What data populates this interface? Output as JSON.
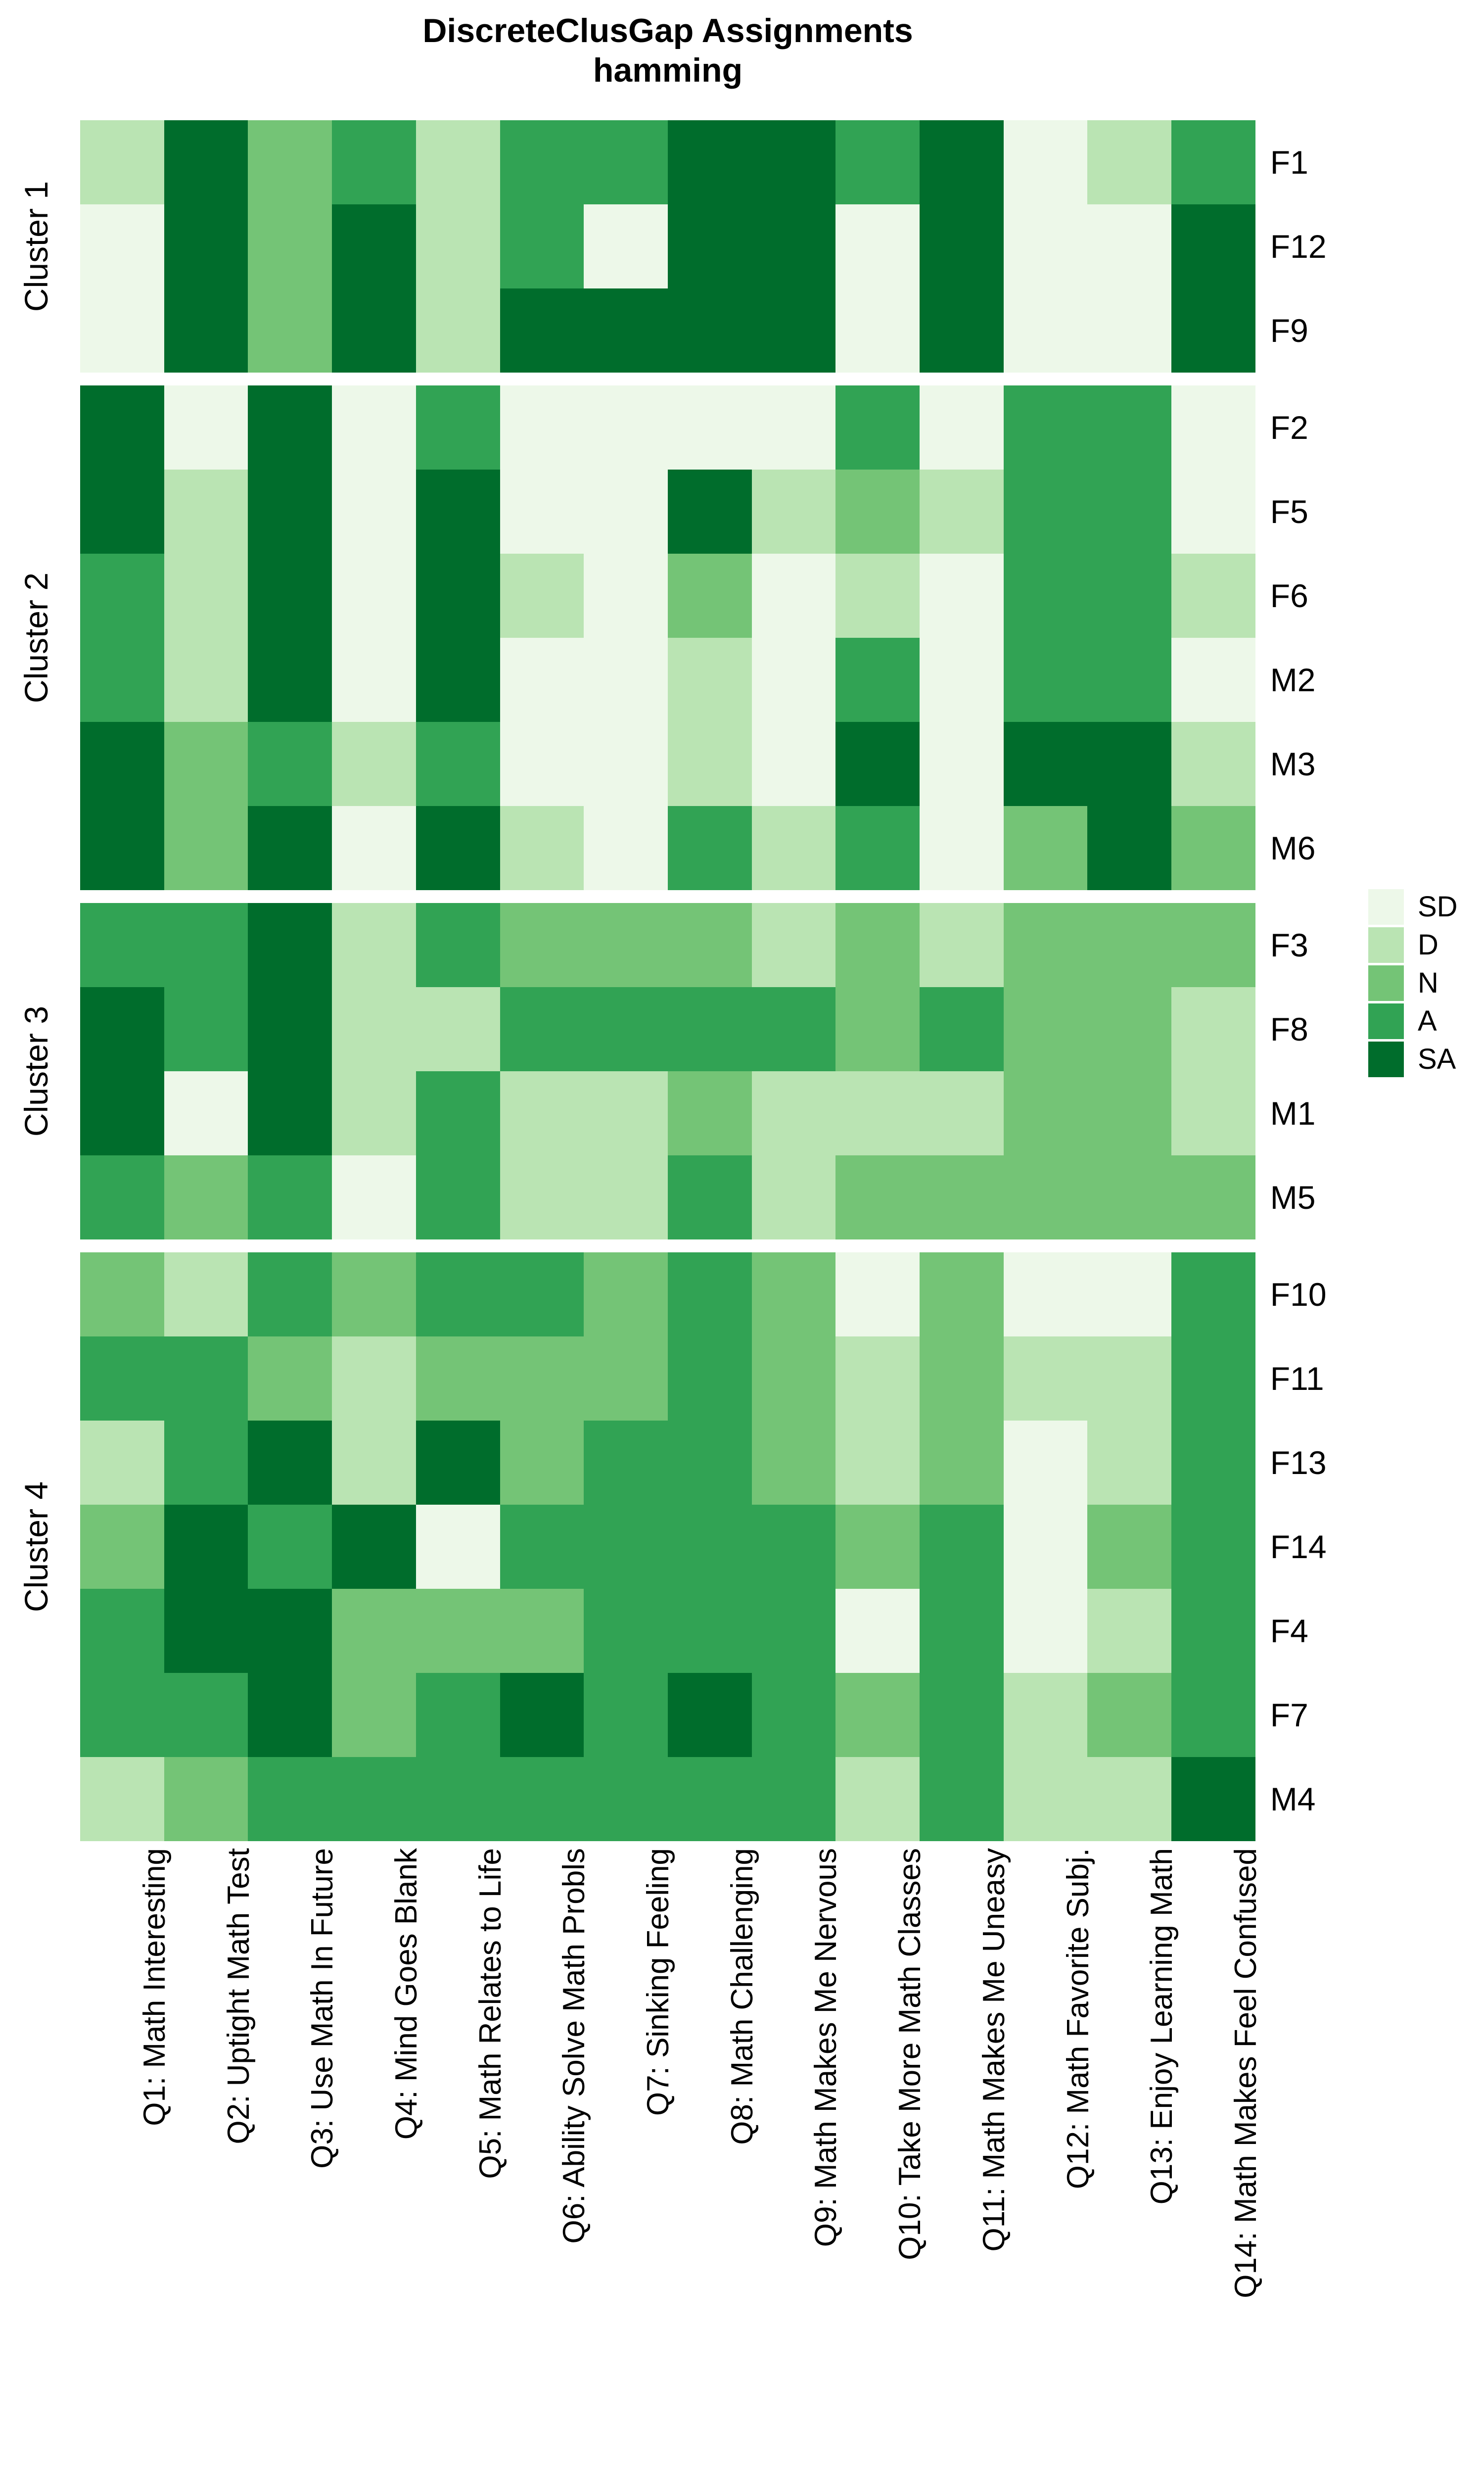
{
  "chart_data": {
    "type": "heatmap",
    "title": "DiscreteClusGap Assignments",
    "subtitle": "hamming",
    "legend": {
      "position": "right",
      "entries": [
        {
          "label": "SD",
          "color": "#edf8e9"
        },
        {
          "label": "D",
          "color": "#bae4b3"
        },
        {
          "label": "N",
          "color": "#74c476"
        },
        {
          "label": "A",
          "color": "#31a354"
        },
        {
          "label": "SA",
          "color": "#006d2c"
        }
      ]
    },
    "columns": [
      "Q1: Math Interesting",
      "Q2: Uptight Math Test",
      "Q3: Use Math In Future",
      "Q4: Mind Goes Blank",
      "Q5: Math Relates to Life",
      "Q6: Ability Solve Math Probls",
      "Q7: Sinking Feeling",
      "Q8: Math Challenging",
      "Q9: Math Makes Me Nervous",
      "Q10: Take More Math Classes",
      "Q11: Math Makes Me Uneasy",
      "Q12: Math Favorite Subj.",
      "Q13: Enjoy Learning Math",
      "Q14: Math Makes Feel Confused"
    ],
    "clusters": [
      {
        "name": "Cluster 1",
        "rows": [
          {
            "label": "F1",
            "values": [
              "D",
              "SA",
              "N",
              "A",
              "D",
              "A",
              "A",
              "SA",
              "SA",
              "A",
              "SA",
              "SD",
              "D",
              "A"
            ]
          },
          {
            "label": "F12",
            "values": [
              "SD",
              "SA",
              "N",
              "SA",
              "D",
              "A",
              "SD",
              "SA",
              "SA",
              "SD",
              "SA",
              "SD",
              "SD",
              "SA"
            ]
          },
          {
            "label": "F9",
            "values": [
              "SD",
              "SA",
              "N",
              "SA",
              "D",
              "SA",
              "SA",
              "SA",
              "SA",
              "SD",
              "SA",
              "SD",
              "SD",
              "SA"
            ]
          }
        ]
      },
      {
        "name": "Cluster 2",
        "rows": [
          {
            "label": "F2",
            "values": [
              "SA",
              "SD",
              "SA",
              "SD",
              "A",
              "SD",
              "SD",
              "SD",
              "SD",
              "A",
              "SD",
              "A",
              "A",
              "SD"
            ]
          },
          {
            "label": "F5",
            "values": [
              "SA",
              "D",
              "SA",
              "SD",
              "SA",
              "SD",
              "SD",
              "SA",
              "D",
              "N",
              "D",
              "A",
              "A",
              "SD"
            ]
          },
          {
            "label": "F6",
            "values": [
              "A",
              "D",
              "SA",
              "SD",
              "SA",
              "D",
              "SD",
              "N",
              "SD",
              "D",
              "SD",
              "A",
              "A",
              "D"
            ]
          },
          {
            "label": "M2",
            "values": [
              "A",
              "D",
              "SA",
              "SD",
              "SA",
              "SD",
              "SD",
              "D",
              "SD",
              "A",
              "SD",
              "A",
              "A",
              "SD"
            ]
          },
          {
            "label": "M3",
            "values": [
              "SA",
              "N",
              "A",
              "D",
              "A",
              "SD",
              "SD",
              "D",
              "SD",
              "SA",
              "SD",
              "SA",
              "SA",
              "D"
            ]
          },
          {
            "label": "M6",
            "values": [
              "SA",
              "N",
              "SA",
              "SD",
              "SA",
              "D",
              "SD",
              "A",
              "D",
              "A",
              "SD",
              "N",
              "SA",
              "N"
            ]
          }
        ]
      },
      {
        "name": "Cluster 3",
        "rows": [
          {
            "label": "F3",
            "values": [
              "A",
              "A",
              "SA",
              "D",
              "A",
              "N",
              "N",
              "N",
              "D",
              "N",
              "D",
              "N",
              "N",
              "N"
            ]
          },
          {
            "label": "F8",
            "values": [
              "SA",
              "A",
              "SA",
              "D",
              "D",
              "A",
              "A",
              "A",
              "A",
              "N",
              "A",
              "N",
              "N",
              "D"
            ]
          },
          {
            "label": "M1",
            "values": [
              "SA",
              "SD",
              "SA",
              "D",
              "A",
              "D",
              "D",
              "N",
              "D",
              "D",
              "D",
              "N",
              "N",
              "D"
            ]
          },
          {
            "label": "M5",
            "values": [
              "A",
              "N",
              "A",
              "SD",
              "A",
              "D",
              "D",
              "A",
              "D",
              "N",
              "N",
              "N",
              "N",
              "N"
            ]
          }
        ]
      },
      {
        "name": "Cluster 4",
        "rows": [
          {
            "label": "F10",
            "values": [
              "N",
              "D",
              "A",
              "N",
              "A",
              "A",
              "N",
              "A",
              "N",
              "SD",
              "N",
              "SD",
              "SD",
              "A"
            ]
          },
          {
            "label": "F11",
            "values": [
              "A",
              "A",
              "N",
              "D",
              "N",
              "N",
              "N",
              "A",
              "N",
              "D",
              "N",
              "D",
              "D",
              "A"
            ]
          },
          {
            "label": "F13",
            "values": [
              "D",
              "A",
              "SA",
              "D",
              "SA",
              "N",
              "A",
              "A",
              "N",
              "D",
              "N",
              "SD",
              "D",
              "A"
            ]
          },
          {
            "label": "F14",
            "values": [
              "N",
              "SA",
              "A",
              "SA",
              "SD",
              "A",
              "A",
              "A",
              "A",
              "N",
              "A",
              "SD",
              "N",
              "A"
            ]
          },
          {
            "label": "F4",
            "values": [
              "A",
              "SA",
              "SA",
              "N",
              "N",
              "N",
              "A",
              "A",
              "A",
              "SD",
              "A",
              "SD",
              "D",
              "A"
            ]
          },
          {
            "label": "F7",
            "values": [
              "A",
              "A",
              "SA",
              "N",
              "A",
              "SA",
              "A",
              "SA",
              "A",
              "N",
              "A",
              "D",
              "N",
              "A"
            ]
          },
          {
            "label": "M4",
            "values": [
              "D",
              "N",
              "A",
              "A",
              "A",
              "A",
              "A",
              "A",
              "A",
              "D",
              "A",
              "D",
              "D",
              "SA"
            ]
          }
        ]
      }
    ],
    "layout_hints": {
      "grid": "off",
      "row_dendrogram": "none",
      "value_scale": [
        "SD",
        "D",
        "N",
        "A",
        "SA"
      ]
    }
  }
}
